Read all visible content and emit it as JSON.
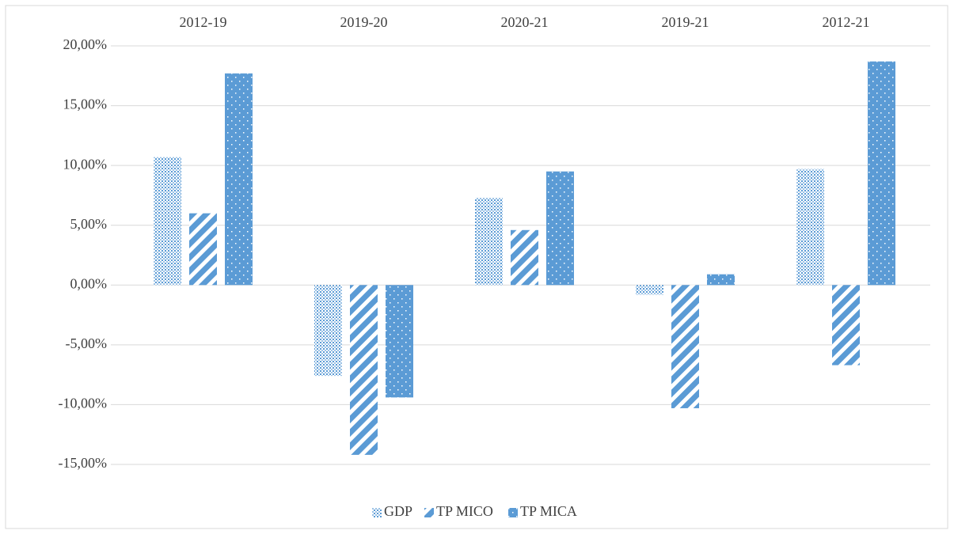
{
  "chart_data": {
    "type": "bar",
    "categories": [
      "2012-19",
      "2019-20",
      "2020-21",
      "2019-21",
      "2012-21"
    ],
    "series": [
      {
        "name": "GDP",
        "color": "#5b9bd5",
        "pattern": "dots",
        "values": [
          10.7,
          -7.6,
          7.3,
          -0.8,
          9.7
        ]
      },
      {
        "name": "TP MICO",
        "color": "#5b9bd5",
        "pattern": "stripes",
        "values": [
          6.0,
          -14.2,
          4.6,
          -10.3,
          -6.7
        ]
      },
      {
        "name": "TP MICA",
        "color": "#5b9bd5",
        "pattern": "solid-dots",
        "values": [
          17.7,
          -9.4,
          9.5,
          0.9,
          18.7
        ]
      }
    ],
    "ylim": [
      -15,
      20
    ],
    "yticks": [
      {
        "value": -15,
        "label": "-15,00%"
      },
      {
        "value": -10,
        "label": "-10,00%"
      },
      {
        "value": -5,
        "label": "-5,00%"
      },
      {
        "value": 0,
        "label": "0,00%"
      },
      {
        "value": 5,
        "label": "5,00%"
      },
      {
        "value": 10,
        "label": "10,00%"
      },
      {
        "value": 15,
        "label": "15,00%"
      },
      {
        "value": 20,
        "label": "20,00%"
      }
    ],
    "grid": true,
    "legend": "bottom"
  }
}
